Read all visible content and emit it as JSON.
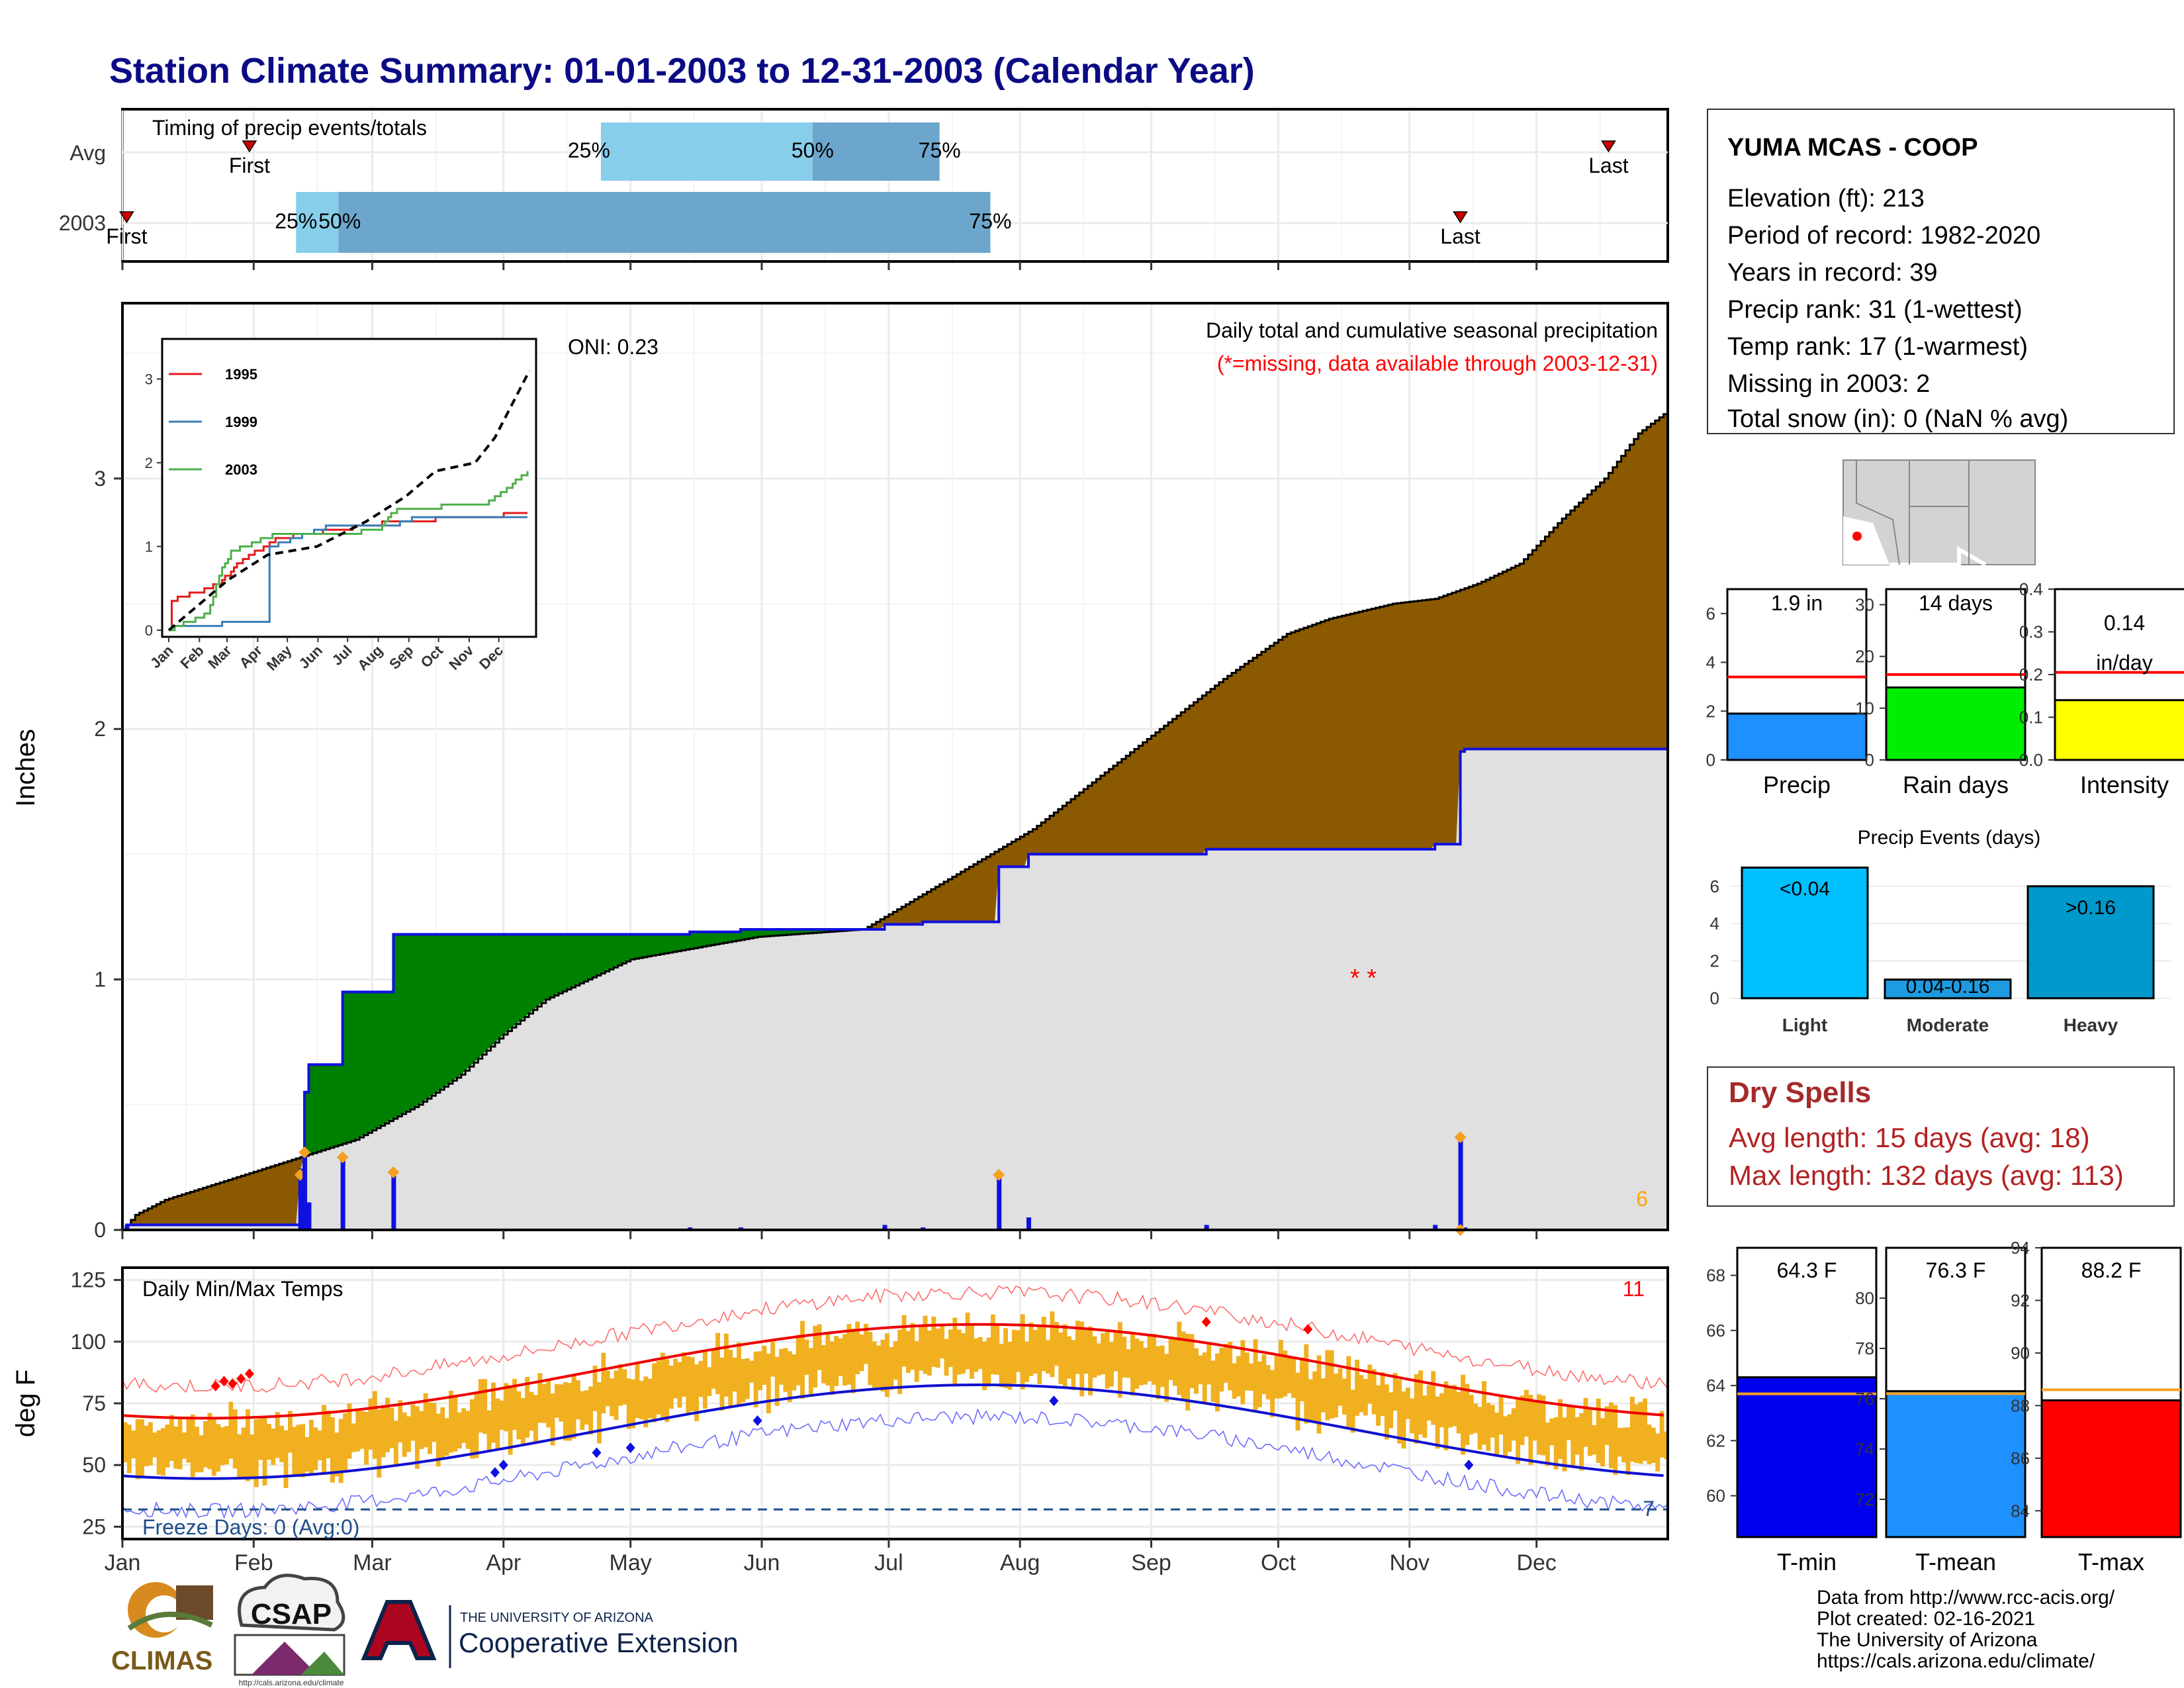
{
  "title": "Station Climate Summary: 01-01-2003 to 12-31-2003 (Calendar Year)",
  "colors": {
    "title": "#0b0b86",
    "precip_fill": "#8b5a00",
    "green": "#007a00",
    "blue": "#1010e0",
    "grey": "#e0e0e0",
    "gold": "#f0b020",
    "red": "#ff0000",
    "dry_title": "#a52a2a",
    "dark_red": "#b22222"
  },
  "timing_panel": {
    "label": "Timing of precip events/totals",
    "rows": [
      {
        "name": "Avg",
        "first_day": 30,
        "last_day": 351,
        "p25_day": 113,
        "p50_day": 163,
        "p75_day": 193,
        "labels": {
          "p25": "25%",
          "p50": "50%",
          "p75": "75%",
          "first": "First",
          "last": "Last"
        }
      },
      {
        "name": "2003",
        "first_day": 1,
        "last_day": 316,
        "p25_day": 41,
        "p50_day": 51,
        "p75_day": 205,
        "labels": {
          "p25": "25%",
          "p50": "50%",
          "p75": "75%",
          "first": "First",
          "last": "Last"
        }
      }
    ]
  },
  "precip_panel": {
    "oni": "ONI: 0.23",
    "note1": "Daily total and cumulative seasonal precipitation",
    "note2": "(*=missing, data available through 2003-12-31)",
    "ylabel": "Inches",
    "yticks": [
      "0",
      "1",
      "2",
      "3"
    ],
    "ylim": [
      0,
      3.7
    ],
    "corner_count": "6",
    "missing_marks": "* *"
  },
  "inset": {
    "yticks": [
      "0",
      "1",
      "2",
      "3"
    ],
    "months": [
      "Jan",
      "Feb",
      "Mar",
      "Apr",
      "May",
      "Jun",
      "Jul",
      "Aug",
      "Sep",
      "Oct",
      "Nov",
      "Dec"
    ],
    "legend": [
      "1995",
      "1999",
      "2003"
    ]
  },
  "temp_panel": {
    "label": "Daily Min/Max Temps",
    "freeze": "Freeze Days: 0 (Avg:0)",
    "ylabel": "deg F",
    "yticks": [
      "25",
      "50",
      "75",
      "100",
      "125"
    ],
    "count_hot": "11",
    "count_cold": "7"
  },
  "months": [
    "Jan",
    "Feb",
    "Mar",
    "Apr",
    "May",
    "Jun",
    "Jul",
    "Aug",
    "Sep",
    "Oct",
    "Nov",
    "Dec"
  ],
  "info": {
    "station": "YUMA MCAS - COOP",
    "lines": [
      "Elevation (ft): 213",
      "Period of record: 1982-2020",
      "Years in record: 39",
      "Precip rank: 31 (1-wettest)",
      "Temp rank: 17 (1-warmest)",
      "Missing in 2003: 2",
      "Total snow (in): 0 (NaN % avg)"
    ]
  },
  "mini_bars": {
    "precip": {
      "label": "Precip",
      "value_text": "1.9 in",
      "value": 1.9,
      "avg": 3.4,
      "ymax": 7,
      "ticks": [
        "0",
        "2",
        "4",
        "6"
      ],
      "color": "#1e90ff"
    },
    "rain_days": {
      "label": "Rain days",
      "value_text": "14 days",
      "value": 14,
      "avg": 16.5,
      "ymax": 33,
      "ticks": [
        "0",
        "10",
        "20",
        "30"
      ],
      "color": "#00ee00"
    },
    "intensity": {
      "label": "Intensity",
      "value_text_1": "0.14",
      "value_text_2": "in/day",
      "value": 0.14,
      "avg": 0.205,
      "ymax": 0.4,
      "ticks": [
        "0.0",
        "0.1",
        "0.2",
        "0.3",
        "0.4"
      ],
      "color": "#ffff00"
    }
  },
  "events": {
    "title": "Precip Events (days)",
    "ticks": [
      "0",
      "2",
      "4",
      "6"
    ],
    "bars": [
      {
        "name": "Light",
        "label": "<0.04",
        "value": 7,
        "color": "#00bfff"
      },
      {
        "name": "Moderate",
        "label": "0.04-0.16",
        "value": 1,
        "color": "#1e9be0"
      },
      {
        "name": "Heavy",
        "label": ">0.16",
        "value": 6,
        "color": "#0099cc"
      }
    ]
  },
  "dry_spells": {
    "title": "Dry Spells",
    "avg": "Avg length: 15 days (avg: 18)",
    "max": "Max length: 132 days (avg: 113)"
  },
  "temp_bars": {
    "tmin": {
      "label": "T-min",
      "value_text": "64.3 F",
      "value": 64.3,
      "avg": 63.7,
      "ymin": 58.5,
      "ymax": 69,
      "ticks": [
        "60",
        "62",
        "64",
        "66",
        "68"
      ],
      "color": "#0000ee"
    },
    "tmean": {
      "label": "T-mean",
      "value_text": "76.3 F",
      "value": 76.3,
      "avg": 76.2,
      "ymin": 70.5,
      "ymax": 82,
      "ticks": [
        "72",
        "74",
        "76",
        "78",
        "80"
      ],
      "color": "#1e90ff"
    },
    "tmax": {
      "label": "T-max",
      "value_text": "88.2 F",
      "value": 88.2,
      "avg": 88.6,
      "ymin": 83,
      "ymax": 94,
      "ticks": [
        "84",
        "86",
        "88",
        "90",
        "92",
        "94"
      ],
      "color": "#ff0000"
    }
  },
  "logos": {
    "climas": "CLIMAS",
    "csap": "CSAP",
    "csap_url": "http://cals.arizona.edu/climate",
    "ua_small": "THE UNIVERSITY OF ARIZONA",
    "ua_big": "Cooperative Extension"
  },
  "credits": [
    "Data from http://www.rcc-acis.org/",
    "Plot created: 02-16-2021",
    "The University of Arizona",
    "https://cals.arizona.edu/climate/"
  ]
}
